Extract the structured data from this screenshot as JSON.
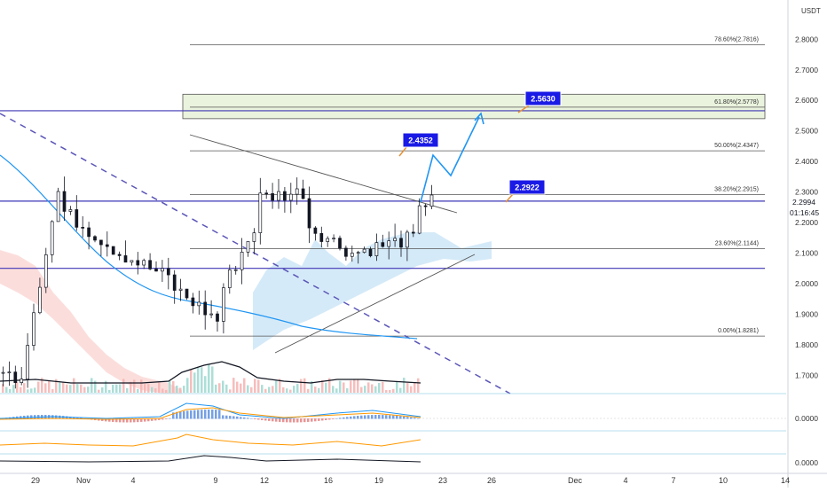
{
  "currency": "USDT",
  "current_price_label": "2.2994",
  "countdown": "01:16:45",
  "colors": {
    "bull": "#26a69a",
    "bear": "#131722",
    "candle_body_up": "#ffffff",
    "volume_up": "#9ed8d0",
    "volume_down": "#f5b3b0",
    "fib_line": "#555555",
    "horizontal_level": "#3f36b5",
    "trendline": "#555555",
    "downtrend_dashed": "#5b56b8",
    "ma_line": "#2196f3",
    "ichimoku_cloud_bull": "#b3d9f2",
    "ichimoku_cloud_bear": "#f8c8c4",
    "projection_arrow": "#2196f3",
    "target_box_fill": "#eaf3dd",
    "label_bg": "#1a1ae6",
    "price_axis_text": "#333333"
  },
  "annotations": [
    {
      "id": "target-3",
      "text": "2.5630"
    },
    {
      "id": "target-2",
      "text": "2.4352"
    },
    {
      "id": "target-1",
      "text": "2.2922"
    }
  ],
  "chart_data": {
    "type": "candlestick",
    "symbol_quote": "USDT",
    "y_axis": {
      "ticks": [
        "2.8000",
        "2.7000",
        "2.6000",
        "2.5000",
        "2.4000",
        "2.3000",
        "2.2000",
        "2.1000",
        "2.0000",
        "1.9000",
        "1.8000",
        "1.7000"
      ],
      "range": [
        1.7,
        2.9
      ]
    },
    "x_axis": {
      "ticks": [
        "29",
        "Nov",
        "4",
        "9",
        "12",
        "16",
        "19",
        "23",
        "26",
        "Dec",
        "4",
        "7",
        "10",
        "14"
      ]
    },
    "fibonacci_levels": [
      {
        "label": "78.60%(2.7816)",
        "price": 2.7816
      },
      {
        "label": "61.80%(2.5778)",
        "price": 2.5778
      },
      {
        "label": "50.00%(2.4347)",
        "price": 2.4347
      },
      {
        "label": "38.20%(2.2915)",
        "price": 2.2915
      },
      {
        "label": "23.60%(2.1144)",
        "price": 2.1144
      },
      {
        "label": "0.00%(1.8281)",
        "price": 1.8281
      }
    ],
    "horizontal_levels": [
      2.566,
      2.27,
      2.05
    ],
    "target_zone": {
      "low": 2.54,
      "high": 2.62
    },
    "price_labels": [
      "2.5630",
      "2.4352",
      "2.2922"
    ],
    "last_price": 2.2994,
    "indicator_pane_ticks": [
      "0.0000",
      "0.0000"
    ]
  }
}
